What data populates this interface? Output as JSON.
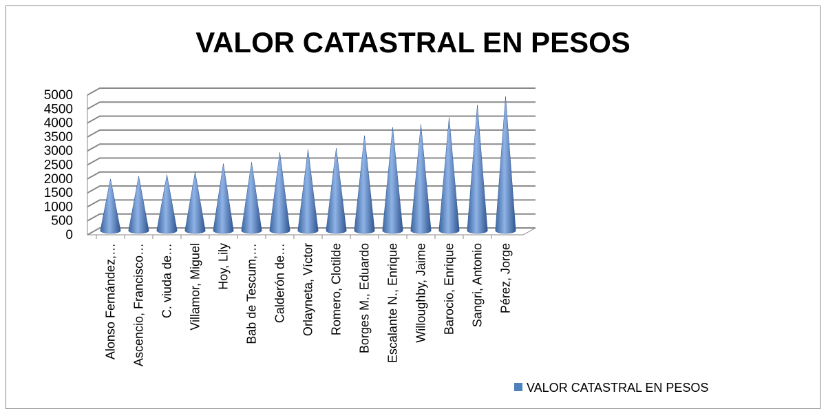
{
  "chart_data": {
    "type": "cone3d",
    "title": "VALOR CATASTRAL EN PESOS",
    "categories": [
      "Alonso Fernández,…",
      "Ascencio, Francisco…",
      "C. viuda de…",
      "Villamor, Miguel",
      "Hoy, Lily",
      "Bab de Tescum,…",
      "Calderón de…",
      "Orlayneta, Víctor",
      "Romero, Clotilde",
      "Borges M., Eduardo",
      "Escalante N., Enrique",
      "Willoughby, Jaime",
      "Barocio, Enrique",
      "Sangri, Antonio",
      "Pérez, Jorge"
    ],
    "series": [
      {
        "name": "VALOR CATASTRAL EN PESOS",
        "color": "#4f81bd",
        "values": [
          2000,
          2100,
          2150,
          2250,
          2550,
          2600,
          2950,
          3050,
          3100,
          3550,
          3850,
          3950,
          4200,
          4650,
          4950
        ]
      }
    ],
    "ylim": [
      0,
      5000
    ],
    "yticks": [
      0,
      500,
      1000,
      1500,
      2000,
      2500,
      3000,
      3500,
      4000,
      4500,
      5000
    ],
    "grid": true,
    "legend": "bottom-right"
  }
}
